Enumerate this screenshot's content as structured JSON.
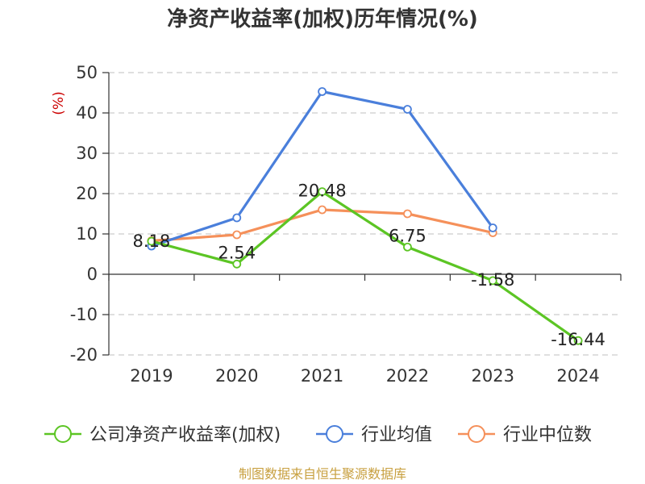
{
  "chart_data": {
    "type": "line",
    "title": "净资产收益率(加权)历年情况(%)",
    "ylabel": "(%)",
    "categories": [
      "2019",
      "2020",
      "2021",
      "2022",
      "2023",
      "2024"
    ],
    "ylim": [
      -20,
      50
    ],
    "yticks": [
      50,
      40,
      30,
      20,
      10,
      0,
      -10,
      -20
    ],
    "grid": true,
    "legend_position": "bottom",
    "series": [
      {
        "name": "公司净资产收益率(加权)",
        "color": "#5cc524",
        "values": [
          8.18,
          2.54,
          20.48,
          6.75,
          -1.58,
          -16.44
        ],
        "labels": [
          "8.18",
          "2.54",
          "20.48",
          "6.75",
          "-1.58",
          "-16.44"
        ]
      },
      {
        "name": "行业均值",
        "color": "#4a7fdb",
        "values": [
          7.0,
          14.0,
          45.3,
          40.9,
          11.5,
          null
        ]
      },
      {
        "name": "行业中位数",
        "color": "#f5905a",
        "values": [
          8.3,
          9.8,
          16.0,
          15.0,
          10.3,
          null
        ]
      }
    ]
  },
  "source": "制图数据来自恒生聚源数据库"
}
